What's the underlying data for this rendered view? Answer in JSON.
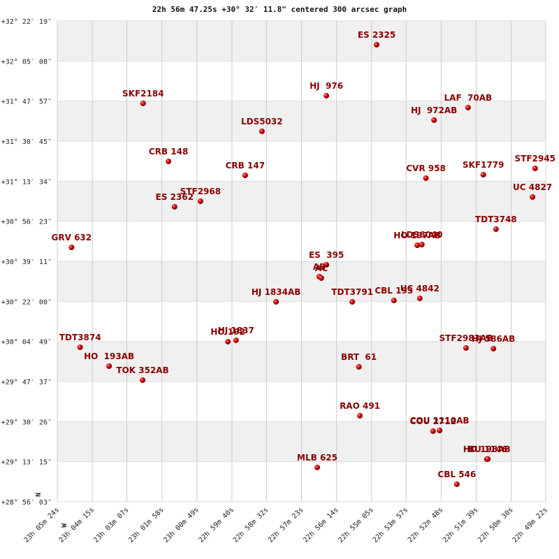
{
  "chart_data": {
    "type": "scatter",
    "title": "22h 56m 47.25s +30° 32′ 11.8\" centered 300 arcsec graph",
    "compass": {
      "north": "N",
      "west": "W"
    },
    "labels": [
      "ES 2325",
      "HJ  976",
      "SKF2184",
      "LAF  70AB",
      "HJ  972AB",
      "LDS5032",
      "CRB 148",
      "CRB 147",
      "CVR 958",
      "SKF1779",
      "STF2945",
      "UC 4827",
      "STF2968",
      "ES 2362",
      "TDT3748",
      "HO 197AB",
      "LDS6040",
      "GRV 632",
      "ES  395",
      "AB",
      "AC",
      "HJ 1834AB",
      "TDT3791",
      "CBL 193",
      "UC 4842",
      "HO 192",
      "HJ 1837",
      "TDT3874",
      "STF2983AB",
      "HJ 586AB",
      "BRT  61",
      "HO  193AB",
      "TOK 352AB",
      "RAO 491",
      "COU 2712",
      "COU 1110AB",
      "HO 198AB",
      "BU 1146",
      "MLB 625",
      "CBL 546"
    ],
    "x": [
      82495,
      82594,
      82955,
      82315,
      82382,
      82721,
      82905,
      82754,
      82398,
      82285,
      82183,
      82188,
      82842,
      82893,
      82260,
      82415,
      82406,
      83096,
      82594,
      82608,
      82604,
      82693,
      82543,
      82461,
      82410,
      82788,
      82772,
      83079,
      82319,
      82265,
      82530,
      83022,
      82956,
      82528,
      82384,
      82371,
      82278,
      82276,
      82612,
      82337
    ],
    "y": [
      115928,
      114615,
      114417,
      114309,
      113986,
      113698,
      112924,
      112564,
      112492,
      112582,
      112744,
      112007,
      111899,
      111755,
      111179,
      110765,
      110783,
      110711,
      110262,
      109956,
      109920,
      109308,
      109308,
      109344,
      109398,
      108283,
      108319,
      108139,
      108121,
      108103,
      107635,
      107653,
      107293,
      106376,
      105980,
      105998,
      105260,
      105262,
      105045,
      104613
    ],
    "xlim": [
      83124,
      82162
    ],
    "xticks": [
      {
        "value": 83124,
        "label": "23h 05m 24s"
      },
      {
        "value": 83055,
        "label": "23h 04m 15s"
      },
      {
        "value": 82987,
        "label": "23h 03m 07s"
      },
      {
        "value": 82918,
        "label": "23h 01m 58s"
      },
      {
        "value": 82849,
        "label": "23h 00m 49s"
      },
      {
        "value": 82780,
        "label": "22h 59m 40s"
      },
      {
        "value": 82712,
        "label": "22h 58m 32s"
      },
      {
        "value": 82643,
        "label": "22h 57m 23s"
      },
      {
        "value": 82574,
        "label": "22h 56m 14s"
      },
      {
        "value": 82505,
        "label": "22h 55m 05s"
      },
      {
        "value": 82437,
        "label": "22h 53m 57s"
      },
      {
        "value": 82368,
        "label": "22h 52m 48s"
      },
      {
        "value": 82299,
        "label": "22h 51m 39s"
      },
      {
        "value": 82230,
        "label": "22h 50m 30s"
      },
      {
        "value": 82162,
        "label": "22h 49m 22s"
      }
    ],
    "ylim": [
      104163,
      116539
    ],
    "yticks": [
      {
        "value": 116539,
        "label": "+32° 22′ 19″"
      },
      {
        "value": 115508,
        "label": "+32° 05′ 08″"
      },
      {
        "value": 114477,
        "label": "+31° 47′ 57″"
      },
      {
        "value": 113445,
        "label": "+31° 30′ 45″"
      },
      {
        "value": 112414,
        "label": "+31° 13′ 34″"
      },
      {
        "value": 111383,
        "label": "+30° 56′ 23″"
      },
      {
        "value": 110351,
        "label": "+30° 39′ 11″"
      },
      {
        "value": 109320,
        "label": "+30° 22′ 00″"
      },
      {
        "value": 108289,
        "label": "+30° 04′ 49″"
      },
      {
        "value": 107257,
        "label": "+29° 47′ 37″"
      },
      {
        "value": 106226,
        "label": "+29° 30′ 26″"
      },
      {
        "value": 105195,
        "label": "+29° 13′ 15″"
      },
      {
        "value": 104163,
        "label": "+28° 56′ 03″"
      }
    ],
    "color": "#cc0000",
    "label_color": "#8b0000",
    "grid": true
  }
}
